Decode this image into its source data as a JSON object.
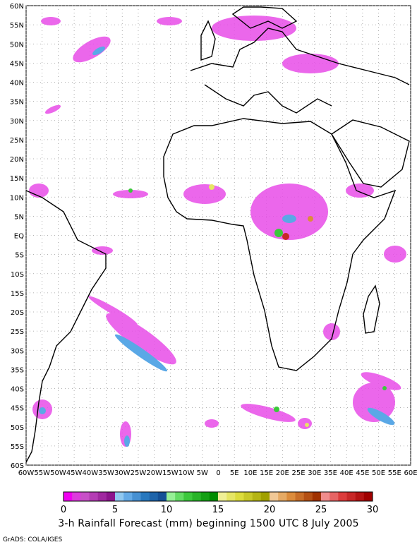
{
  "title": "3-h Rainfall Forecast (mm) beginning 1500 UTC 8 July 2005",
  "credit": "GrADS: COLA/IGES",
  "lat_labels": [
    "60N",
    "55N",
    "50N",
    "45N",
    "40N",
    "35N",
    "30N",
    "25N",
    "20N",
    "15N",
    "10N",
    "5N",
    "EQ",
    "5S",
    "10S",
    "15S",
    "20S",
    "25S",
    "30S",
    "35S",
    "40S",
    "45S",
    "50S",
    "55S",
    "60S"
  ],
  "lon_labels": [
    "60W",
    "55W",
    "50W",
    "45W",
    "40W",
    "35W",
    "30W",
    "25W",
    "20W",
    "15W",
    "10W",
    "5W",
    "0",
    "5E",
    "10E",
    "15E",
    "20E",
    "25E",
    "30E",
    "35E",
    "40E",
    "45E",
    "50E",
    "55E",
    "60E"
  ],
  "colorbar": {
    "ticks": [
      "0",
      "5",
      "10",
      "15",
      "20",
      "25",
      "30"
    ],
    "colors": [
      "#f000f0",
      "#dc3cdc",
      "#c850c8",
      "#b43cb4",
      "#a028a0",
      "#8c148c",
      "#90c8f0",
      "#64aae6",
      "#4690d2",
      "#2878be",
      "#1e64aa",
      "#145096",
      "#96f096",
      "#64dc64",
      "#3cc83c",
      "#28b428",
      "#14a014",
      "#008c00",
      "#f0f096",
      "#e6e664",
      "#dcdc3c",
      "#c8c828",
      "#b4b414",
      "#a0a000",
      "#f0c896",
      "#e6aa64",
      "#dc8c3c",
      "#c86e28",
      "#b45014",
      "#a03200",
      "#f08c8c",
      "#e66464",
      "#dc3c3c",
      "#c82828",
      "#b41414",
      "#a00000"
    ]
  },
  "colors": {
    "magenta": "#e84ce8",
    "blue": "#5aa8e6",
    "green": "#3cc83c",
    "yellow": "#e6e664",
    "orange": "#dc8c3c",
    "red": "#c82828"
  }
}
